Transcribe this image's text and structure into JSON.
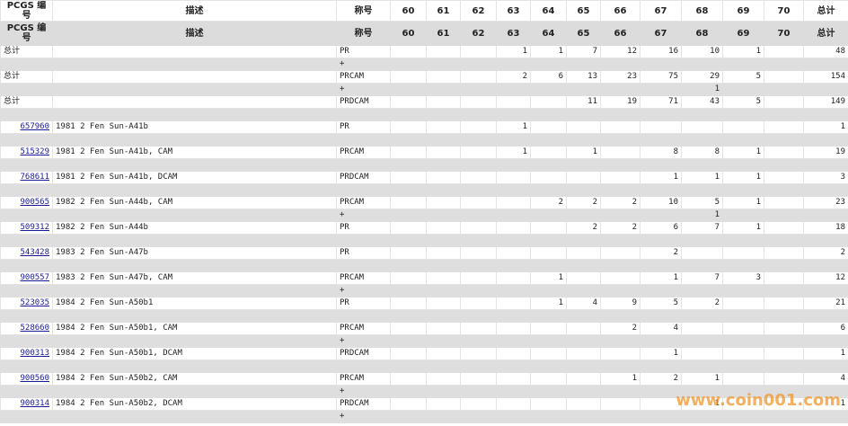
{
  "header_rows": [
    [
      "PCGS 编号",
      "描述",
      "称号",
      "60",
      "61",
      "62",
      "63",
      "64",
      "65",
      "66",
      "67",
      "68",
      "69",
      "70",
      "总计"
    ],
    [
      "PCGS 编号",
      "描述",
      "称号",
      "60",
      "61",
      "62",
      "63",
      "64",
      "65",
      "66",
      "67",
      "68",
      "69",
      "70",
      "总计"
    ]
  ],
  "rows": [
    {
      "cells": [
        "总计",
        null,
        "PR",
        null,
        null,
        null,
        1,
        1,
        7,
        12,
        16,
        10,
        1,
        null,
        48
      ],
      "sub": [
        null,
        null,
        "+",
        null,
        null,
        null,
        null,
        null,
        null,
        null,
        null,
        null,
        null,
        null,
        null
      ]
    },
    {
      "cells": [
        "总计",
        null,
        "PRCAM",
        null,
        null,
        null,
        2,
        6,
        13,
        23,
        75,
        29,
        5,
        null,
        154
      ],
      "sub": [
        null,
        null,
        "+",
        null,
        null,
        null,
        null,
        null,
        null,
        null,
        null,
        1,
        null,
        null,
        null
      ]
    },
    {
      "cells": [
        "总计",
        null,
        "PRDCAM",
        null,
        null,
        null,
        null,
        null,
        11,
        19,
        71,
        43,
        5,
        null,
        149
      ],
      "sub": [
        null,
        null,
        null,
        null,
        null,
        null,
        null,
        null,
        null,
        null,
        null,
        null,
        null,
        null,
        null
      ]
    },
    {
      "cells": [
        "657960",
        "1981 2 Fen Sun-A41b",
        "PR",
        null,
        null,
        null,
        1,
        null,
        null,
        null,
        null,
        null,
        null,
        null,
        1
      ],
      "sub": [
        null,
        null,
        null,
        null,
        null,
        null,
        null,
        null,
        null,
        null,
        null,
        null,
        null,
        null,
        null
      ]
    },
    {
      "cells": [
        "515329",
        "1981 2 Fen Sun-A41b, CAM",
        "PRCAM",
        null,
        null,
        null,
        1,
        null,
        1,
        null,
        8,
        8,
        1,
        null,
        19
      ],
      "sub": [
        null,
        null,
        null,
        null,
        null,
        null,
        null,
        null,
        null,
        null,
        null,
        null,
        null,
        null,
        null
      ]
    },
    {
      "cells": [
        "768611",
        "1981 2 Fen Sun-A41b, DCAM",
        "PRDCAM",
        null,
        null,
        null,
        null,
        null,
        null,
        null,
        1,
        1,
        1,
        null,
        3
      ],
      "sub": [
        null,
        null,
        null,
        null,
        null,
        null,
        null,
        null,
        null,
        null,
        null,
        null,
        null,
        null,
        null
      ]
    },
    {
      "cells": [
        "900565",
        "1982 2 Fen Sun-A44b, CAM",
        "PRCAM",
        null,
        null,
        null,
        null,
        2,
        2,
        2,
        10,
        5,
        1,
        null,
        23
      ],
      "sub": [
        null,
        null,
        "+",
        null,
        null,
        null,
        null,
        null,
        null,
        null,
        null,
        1,
        null,
        null,
        null
      ]
    },
    {
      "cells": [
        "509312",
        "1982 2 Fen Sun-A44b",
        "PR",
        null,
        null,
        null,
        null,
        null,
        2,
        2,
        6,
        7,
        1,
        null,
        18
      ],
      "sub": [
        null,
        null,
        null,
        null,
        null,
        null,
        null,
        null,
        null,
        null,
        null,
        null,
        null,
        null,
        null
      ]
    },
    {
      "cells": [
        "543428",
        "1983 2 Fen Sun-A47b",
        "PR",
        null,
        null,
        null,
        null,
        null,
        null,
        null,
        2,
        null,
        null,
        null,
        2
      ],
      "sub": [
        null,
        null,
        null,
        null,
        null,
        null,
        null,
        null,
        null,
        null,
        null,
        null,
        null,
        null,
        null
      ]
    },
    {
      "cells": [
        "900557",
        "1983 2 Fen Sun-A47b, CAM",
        "PRCAM",
        null,
        null,
        null,
        null,
        1,
        null,
        null,
        1,
        7,
        3,
        null,
        12
      ],
      "sub": [
        null,
        null,
        "+",
        null,
        null,
        null,
        null,
        null,
        null,
        null,
        null,
        null,
        null,
        null,
        null
      ]
    },
    {
      "cells": [
        "523035",
        "1984 2 Fen Sun-A50b1",
        "PR",
        null,
        null,
        null,
        null,
        1,
        4,
        9,
        5,
        2,
        null,
        null,
        21
      ],
      "sub": [
        null,
        null,
        null,
        null,
        null,
        null,
        null,
        null,
        null,
        null,
        null,
        null,
        null,
        null,
        null
      ]
    },
    {
      "cells": [
        "528660",
        "1984 2 Fen Sun-A50b1, CAM",
        "PRCAM",
        null,
        null,
        null,
        null,
        null,
        null,
        2,
        4,
        null,
        null,
        null,
        6
      ],
      "sub": [
        null,
        null,
        "+",
        null,
        null,
        null,
        null,
        null,
        null,
        null,
        null,
        null,
        null,
        null,
        null
      ]
    },
    {
      "cells": [
        "900313",
        "1984 2 Fen Sun-A50b1, DCAM",
        "PRDCAM",
        null,
        null,
        null,
        null,
        null,
        null,
        null,
        1,
        null,
        null,
        null,
        1
      ],
      "sub": [
        null,
        null,
        null,
        null,
        null,
        null,
        null,
        null,
        null,
        null,
        null,
        null,
        null,
        null,
        null
      ]
    },
    {
      "cells": [
        "900560",
        "1984 2 Fen Sun-A50b2, CAM",
        "PRCAM",
        null,
        null,
        null,
        null,
        null,
        null,
        1,
        2,
        1,
        null,
        null,
        4
      ],
      "sub": [
        null,
        null,
        "+",
        null,
        null,
        null,
        null,
        null,
        null,
        null,
        null,
        null,
        null,
        null,
        null
      ]
    },
    {
      "cells": [
        "900314",
        "1984 2 Fen Sun-A50b2, DCAM",
        "PRDCAM",
        null,
        null,
        null,
        null,
        null,
        null,
        null,
        null,
        1,
        null,
        null,
        1
      ],
      "sub": [
        null,
        null,
        "+",
        null,
        null,
        null,
        null,
        null,
        null,
        null,
        null,
        null,
        null,
        null,
        null
      ]
    }
  ],
  "watermark": "www.coin001.com"
}
